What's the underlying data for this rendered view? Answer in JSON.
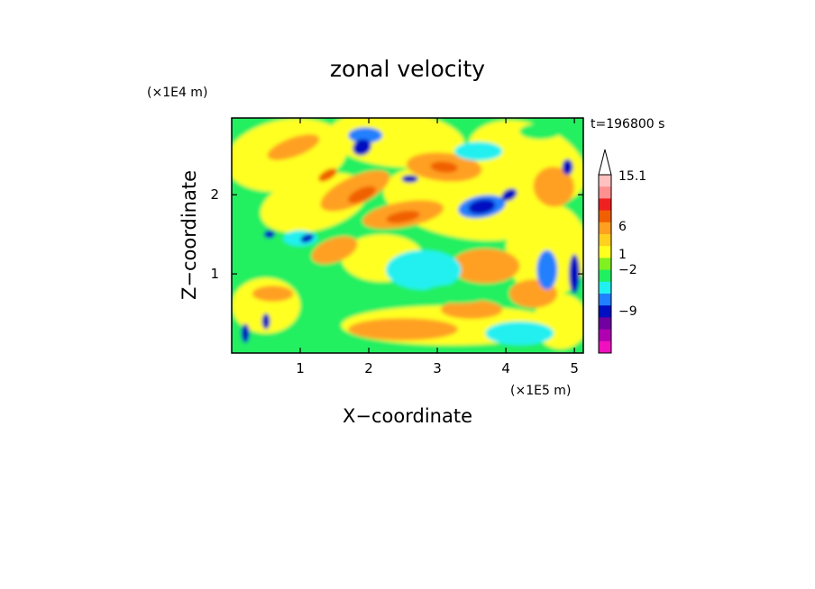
{
  "chart_data": {
    "type": "heatmap",
    "title": "zonal velocity",
    "xlabel": "X−coordinate",
    "ylabel": "Z−coordinate",
    "x_unit": "(×1E5 m)",
    "y_unit": "(×1E4 m)",
    "time_label": "t=196800 s",
    "x_ticks": [
      "1",
      "2",
      "3",
      "4",
      "5"
    ],
    "y_ticks": [
      "1",
      "2"
    ],
    "xlim": [
      0,
      5.13
    ],
    "ylim": [
      0,
      2.97
    ],
    "colorbar": {
      "labels": [
        "15.1",
        "6",
        "1",
        "−2",
        "−9"
      ],
      "colors": [
        "#ffc0c0",
        "#ff9090",
        "#f02020",
        "#f06000",
        "#ffa020",
        "#ffd020",
        "#ffff20",
        "#80f020",
        "#20f060",
        "#20f0f0",
        "#2080ff",
        "#0010c0",
        "#7000a0",
        "#b000b0",
        "#f010c0"
      ]
    },
    "field_colors": {
      "strong_negative": "#0010c0",
      "moderate_negative": "#2080ff",
      "weak_negative": "#20f0f0",
      "near_zero": "#20f060",
      "weak_positive": "#ffff20",
      "moderate_positive": "#ffa020",
      "strong_positive": "#f06000"
    }
  }
}
